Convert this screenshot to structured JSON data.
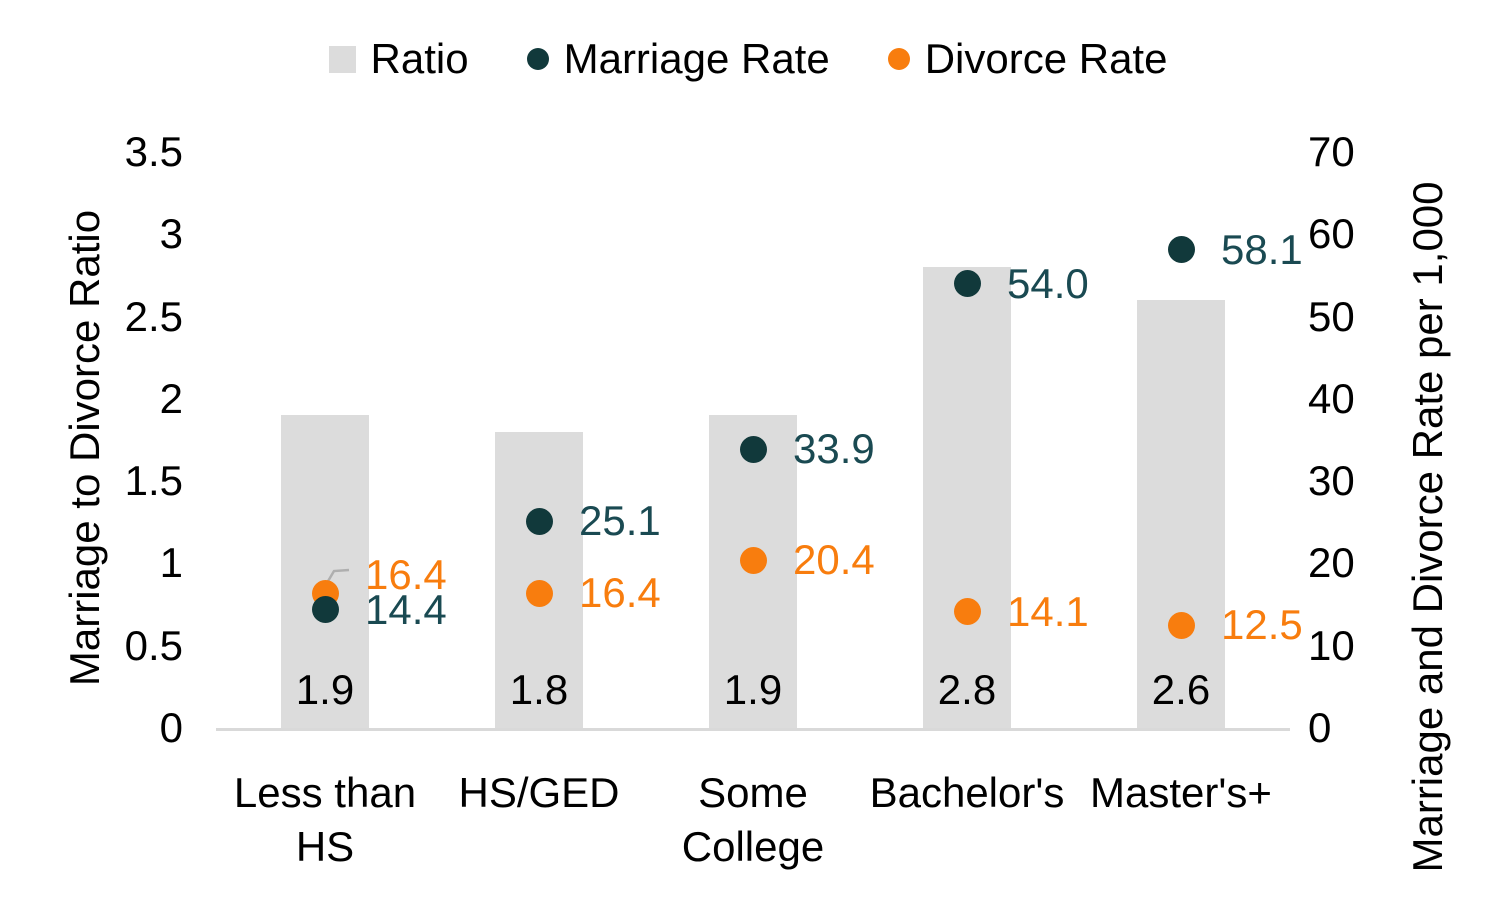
{
  "chart_data": {
    "type": "combo-bar-scatter",
    "title": "",
    "categories": [
      "Less than HS",
      "HS/GED",
      "Some College",
      "Bachelor's",
      "Master's+"
    ],
    "series": [
      {
        "name": "Ratio",
        "type": "bar",
        "axis": "left",
        "color": "#DCDCDC",
        "values": [
          1.9,
          1.8,
          1.9,
          2.8,
          2.6
        ],
        "labels": [
          "1.9",
          "1.8",
          "1.9",
          "2.8",
          "2.6"
        ],
        "label_color": "#000000"
      },
      {
        "name": "Marriage Rate",
        "type": "scatter",
        "axis": "right",
        "color": "#11393B",
        "values": [
          14.4,
          25.1,
          33.9,
          54.0,
          58.1
        ],
        "labels": [
          "14.4",
          "25.1",
          "33.9",
          "54.0",
          "58.1"
        ],
        "label_color": "#1A4A52"
      },
      {
        "name": "Divorce Rate",
        "type": "scatter",
        "axis": "right",
        "color": "#F87D0E",
        "values": [
          16.4,
          16.4,
          20.4,
          14.1,
          12.5
        ],
        "labels": [
          "16.4",
          "16.4",
          "20.4",
          "14.1",
          "12.5"
        ],
        "label_color": "#F87D0E",
        "label_dy": [
          -18,
          0,
          0,
          0,
          0
        ],
        "leader_point": 0
      }
    ],
    "axis_left": {
      "title": "Marriage to Divorce Ratio",
      "min": 0,
      "max": 3.5,
      "ticks": [
        "3.5",
        "3",
        "2.5",
        "2",
        "1.5",
        "1",
        "0.5",
        "0"
      ],
      "tick_values": [
        3.5,
        3,
        2.5,
        2,
        1.5,
        1,
        0.5,
        0
      ]
    },
    "axis_right": {
      "title": "Marriage and Divorce Rate per 1,000",
      "min": 0,
      "max": 70,
      "ticks": [
        "70",
        "60",
        "50",
        "40",
        "30",
        "20",
        "10",
        "0"
      ],
      "tick_values": [
        70,
        60,
        50,
        40,
        30,
        20,
        10,
        0
      ]
    },
    "legend_position": "top",
    "grid": "off",
    "background": "#FFFFFF",
    "axis_line_color": "#D9D9D9",
    "leader_line_color": "#AFAFAF"
  }
}
